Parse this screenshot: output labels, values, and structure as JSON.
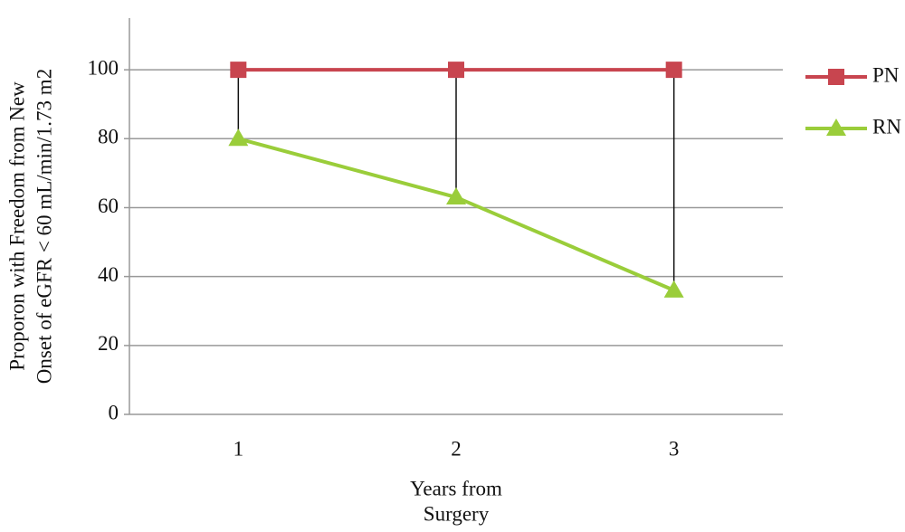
{
  "chart_data": {
    "type": "line",
    "ylabel": [
      "Proporon with Freedom from New",
      "Onset of eGFR < 60 mL/min/1.73 m2"
    ],
    "xlabel": [
      "Years from",
      "Surgery"
    ],
    "categories": [
      "1",
      "2",
      "3"
    ],
    "series": [
      {
        "name": "PN",
        "color": "#c8454f",
        "marker": "square",
        "values": [
          100,
          100,
          100
        ]
      },
      {
        "name": "RN",
        "color": "#9acd3a",
        "marker": "triangle",
        "values": [
          80,
          63,
          36
        ]
      }
    ],
    "ylim": [
      0,
      115
    ],
    "yticks": [
      0,
      20,
      40,
      60,
      80,
      100
    ],
    "grid": true,
    "drop_lines": true,
    "legend": "right"
  }
}
